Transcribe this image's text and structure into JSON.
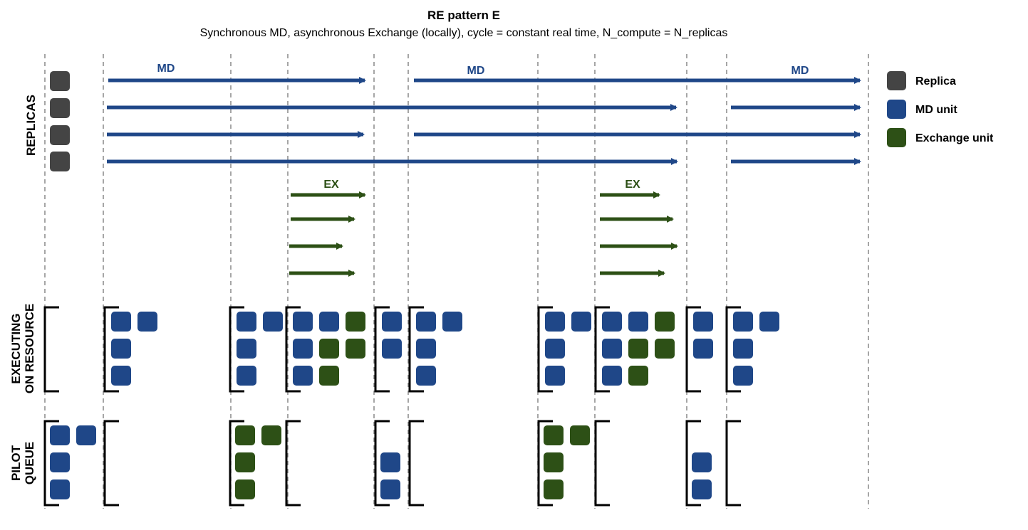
{
  "title": "RE pattern E",
  "subtitle": "Synchronous MD, asynchronous Exchange (locally), cycle = constant real time, N_compute = N_replicas",
  "colors": {
    "replica": "#444444",
    "md": "#1f4788",
    "exchange": "#2d5016",
    "divider": "#888888",
    "bracket": "#000000"
  },
  "sections": {
    "replicas": [
      "REPLICAS"
    ],
    "executing": [
      "EXECUTING",
      "ON RESOURCE"
    ],
    "queue": [
      "PILOT",
      "QUEUE"
    ]
  },
  "md_arrow_labels": [
    "MD",
    "MD",
    "MD"
  ],
  "ex_arrow_labels": [
    "EX",
    "EX"
  ],
  "legend": [
    {
      "label": "Replica",
      "type": "replica"
    },
    {
      "label": "MD unit",
      "type": "md"
    },
    {
      "label": "Exchange unit",
      "type": "exchange"
    }
  ],
  "executing_blocks": [
    {
      "rows": []
    },
    {
      "rows": [
        [
          "md",
          "md"
        ],
        [
          "md"
        ],
        [
          "md"
        ]
      ]
    },
    {
      "rows": [
        [
          "md",
          "md"
        ],
        [
          "md"
        ],
        [
          "md"
        ]
      ]
    },
    {
      "rows": [
        [
          "md",
          "md",
          "ex"
        ],
        [
          "md",
          "ex",
          "ex"
        ],
        [
          "md",
          "ex"
        ]
      ]
    },
    {
      "rows": [
        [
          "md"
        ],
        [
          "md"
        ]
      ]
    },
    {
      "rows": [
        [
          "md",
          "md"
        ],
        [
          "md"
        ],
        [
          "md"
        ]
      ]
    },
    {
      "rows": [
        [
          "md",
          "md"
        ],
        [
          "md"
        ],
        [
          "md"
        ]
      ]
    },
    {
      "rows": [
        [
          "md",
          "md",
          "ex"
        ],
        [
          "md",
          "ex",
          "ex"
        ],
        [
          "md",
          "ex"
        ]
      ]
    },
    {
      "rows": [
        [
          "md"
        ],
        [
          "md"
        ]
      ]
    },
    {
      "rows": [
        [
          "md",
          "md"
        ],
        [
          "md"
        ],
        [
          "md"
        ]
      ]
    }
  ],
  "queue_blocks": [
    {
      "rows": [
        [
          "md",
          "md"
        ],
        [
          "md"
        ],
        [
          "md"
        ]
      ]
    },
    {
      "rows": []
    },
    {
      "rows": [
        [
          "ex",
          "ex"
        ],
        [
          "ex"
        ],
        [
          "ex"
        ]
      ]
    },
    {
      "rows": []
    },
    {
      "rows": [
        [],
        [
          "md"
        ],
        [
          "md"
        ]
      ]
    },
    {
      "rows": []
    },
    {
      "rows": [
        [
          "ex",
          "ex"
        ],
        [
          "ex"
        ],
        [
          "ex"
        ]
      ]
    },
    {
      "rows": []
    },
    {
      "rows": [
        [],
        [
          "md"
        ],
        [
          "md"
        ]
      ]
    },
    {
      "rows": []
    }
  ]
}
